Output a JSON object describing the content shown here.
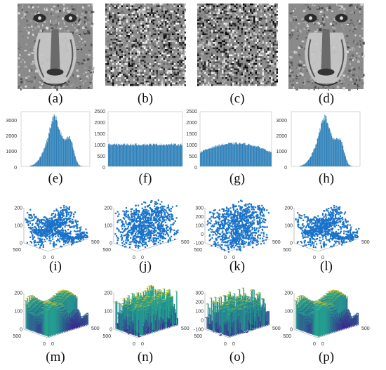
{
  "colors": {
    "bar_blue": "#1f77b4",
    "scatter_blue": "#1a73c9",
    "surf_low": "#3b1f8f",
    "surf_mid": "#21a58f",
    "surf_high": "#f2c419",
    "noise_dark": "#3a3a3a",
    "noise_light": "#dcdcdc"
  },
  "captions": {
    "a": "(a)",
    "b": "(b)",
    "c": "(c)",
    "d": "(d)",
    "e": "(e)",
    "f": "(f)",
    "g": "(g)",
    "h": "(h)",
    "i": "(i)",
    "j": "(j)",
    "k": "(k)",
    "l": "(l)",
    "m": "(m)",
    "n": "(n)",
    "o": "(o)",
    "p": "(p)"
  },
  "images": {
    "a": "plain grayscale baboon image",
    "b": "encrypted noise image",
    "c": "encrypted noise image",
    "d": "decrypted grayscale baboon image"
  },
  "chart_data": [
    {
      "id": "e",
      "type": "bar",
      "xlim": [
        0,
        255
      ],
      "ylim": [
        0,
        3500
      ],
      "yticks": [
        "3000",
        "2000",
        "1000",
        "0"
      ],
      "shape": "baboon-histogram"
    },
    {
      "id": "f",
      "type": "bar",
      "xlim": [
        0,
        255
      ],
      "ylim": [
        0,
        2500
      ],
      "yticks": [
        "2500",
        "2000",
        "1500",
        "1000",
        "500",
        "0"
      ],
      "flat_level": 1020
    },
    {
      "id": "g",
      "type": "bar",
      "xlim": [
        0,
        255
      ],
      "ylim": [
        0,
        2500
      ],
      "yticks": [
        "2500",
        "2000",
        "1500",
        "1000",
        "500",
        "0"
      ],
      "dome_center": 1060,
      "dome_edge": 650
    },
    {
      "id": "h",
      "type": "bar",
      "xlim": [
        0,
        255
      ],
      "ylim": [
        0,
        3500
      ],
      "yticks": [
        "3000",
        "2000",
        "1000",
        "0"
      ],
      "shape": "baboon-histogram"
    },
    {
      "id": "i",
      "type": "scatter3d",
      "zticks": [
        "200",
        "100",
        "0"
      ],
      "axis_labels": [
        "500",
        "0",
        "0",
        "500"
      ]
    },
    {
      "id": "j",
      "type": "scatter3d",
      "zticks": [
        "200",
        "100",
        "0"
      ],
      "axis_labels": [
        "500",
        "0",
        "0",
        "500"
      ]
    },
    {
      "id": "k",
      "type": "scatter3d",
      "zticks": [
        "300",
        "200",
        "100",
        "0",
        "-100"
      ],
      "axis_labels": [
        "500",
        "0",
        "0",
        "500"
      ]
    },
    {
      "id": "l",
      "type": "scatter3d",
      "zticks": [
        "200",
        "100",
        "0"
      ],
      "axis_labels": [
        "500",
        "0",
        "0",
        "500"
      ]
    },
    {
      "id": "m",
      "type": "surface3d",
      "zticks": [
        "200",
        "100",
        "0"
      ],
      "axis_labels": [
        "500",
        "0",
        "0",
        "500"
      ]
    },
    {
      "id": "n",
      "type": "surface3d",
      "zticks": [
        "200",
        "100",
        "0"
      ],
      "axis_labels": [
        "500",
        "0",
        "0",
        "500"
      ]
    },
    {
      "id": "o",
      "type": "surface3d",
      "zticks": [
        "300",
        "200",
        "100",
        "0",
        "-100"
      ],
      "axis_labels": [
        "500",
        "0",
        "0",
        "500"
      ]
    },
    {
      "id": "p",
      "type": "surface3d",
      "zticks": [
        "200",
        "100",
        "0"
      ],
      "axis_labels": [
        "500",
        "0",
        "0",
        "500"
      ]
    }
  ]
}
